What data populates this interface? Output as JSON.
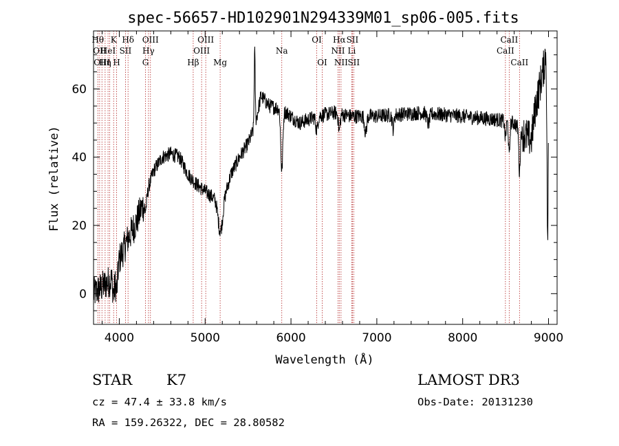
{
  "chart_data": {
    "type": "line",
    "title": "spec-56657-HD102901N294339M01_sp06-005.fits",
    "xlabel": "Wavelength (Å)",
    "ylabel": "Flux (relative)",
    "xlim": [
      3700,
      9100
    ],
    "ylim": [
      -9,
      77
    ],
    "xticks": [
      4000,
      5000,
      6000,
      7000,
      8000,
      9000
    ],
    "yticks": [
      0,
      20,
      40,
      60
    ],
    "x_minor_step": 200,
    "y_minor_step": 5,
    "spectral_lines": [
      {
        "wl": 3750,
        "label": "Hθ",
        "row": 1
      },
      {
        "wl": 3771,
        "label": "OII",
        "row": 2
      },
      {
        "wl": 3798,
        "label": "OIII",
        "row": 3
      },
      {
        "wl": 3835,
        "label": "Hη",
        "row": 3
      },
      {
        "wl": 3869,
        "label": "HeI",
        "row": 2
      },
      {
        "wl": 3889,
        "label": "",
        "row": 0
      },
      {
        "wl": 3934,
        "label": "K",
        "row": 1
      },
      {
        "wl": 3969,
        "label": "H",
        "row": 3
      },
      {
        "wl": 4072,
        "label": "SII",
        "row": 2
      },
      {
        "wl": 4102,
        "label": "Hδ",
        "row": 1
      },
      {
        "wl": 4305,
        "label": "G",
        "row": 3
      },
      {
        "wl": 4340,
        "label": "Hγ",
        "row": 2
      },
      {
        "wl": 4363,
        "label": "OIII",
        "row": 1
      },
      {
        "wl": 4861,
        "label": "Hβ",
        "row": 3
      },
      {
        "wl": 4959,
        "label": "OIII",
        "row": 2
      },
      {
        "wl": 5007,
        "label": "OIII",
        "row": 1
      },
      {
        "wl": 5175,
        "label": "Mg",
        "row": 3
      },
      {
        "wl": 5893,
        "label": "Na",
        "row": 2
      },
      {
        "wl": 6300,
        "label": "OI",
        "row": 1
      },
      {
        "wl": 6364,
        "label": "OI",
        "row": 3
      },
      {
        "wl": 6548,
        "label": "NII",
        "row": 2
      },
      {
        "wl": 6563,
        "label": "Hα",
        "row": 1
      },
      {
        "wl": 6583,
        "label": "NII",
        "row": 3
      },
      {
        "wl": 6708,
        "label": "Li",
        "row": 2
      },
      {
        "wl": 6716,
        "label": "SII",
        "row": 1
      },
      {
        "wl": 6731,
        "label": "SII",
        "row": 3
      },
      {
        "wl": 8498,
        "label": "CaII",
        "row": 2
      },
      {
        "wl": 8542,
        "label": "CaII",
        "row": 1
      },
      {
        "wl": 8662,
        "label": "CaII",
        "row": 3
      }
    ],
    "continuum": [
      [
        3700,
        0
      ],
      [
        3800,
        2
      ],
      [
        3900,
        4
      ],
      [
        4000,
        10
      ],
      [
        4100,
        16
      ],
      [
        4200,
        21
      ],
      [
        4300,
        28
      ],
      [
        4400,
        36
      ],
      [
        4500,
        40
      ],
      [
        4600,
        41
      ],
      [
        4700,
        40
      ],
      [
        4800,
        35
      ],
      [
        4900,
        32
      ],
      [
        5000,
        30
      ],
      [
        5100,
        28
      ],
      [
        5200,
        26
      ],
      [
        5300,
        35
      ],
      [
        5400,
        40
      ],
      [
        5500,
        44
      ],
      [
        5580,
        49
      ],
      [
        5650,
        58
      ],
      [
        5750,
        55
      ],
      [
        5900,
        54
      ],
      [
        6100,
        50
      ],
      [
        6300,
        52
      ],
      [
        6500,
        53
      ],
      [
        6700,
        52
      ],
      [
        7000,
        52
      ],
      [
        7500,
        53
      ],
      [
        8000,
        52
      ],
      [
        8400,
        51
      ],
      [
        8600,
        50
      ],
      [
        8700,
        47
      ],
      [
        8800,
        45
      ],
      [
        8850,
        55
      ],
      [
        8950,
        67
      ],
      [
        8980,
        75
      ],
      [
        9000,
        77
      ]
    ],
    "absorption_dips": [
      [
        3935,
        6,
        12
      ],
      [
        3970,
        7,
        12
      ],
      [
        4305,
        4,
        15
      ],
      [
        5175,
        8,
        25
      ],
      [
        5893,
        18,
        12
      ],
      [
        6300,
        4,
        12
      ],
      [
        6563,
        5,
        10
      ],
      [
        6870,
        5,
        12
      ],
      [
        7190,
        4,
        10
      ],
      [
        7600,
        3,
        15
      ],
      [
        8498,
        5,
        8
      ],
      [
        8542,
        10,
        8
      ],
      [
        8662,
        13,
        8
      ]
    ],
    "emission_spikes": [
      [
        5577,
        22,
        6
      ],
      [
        8990,
        -60,
        8
      ]
    ],
    "noise_amplitude": 2.2
  },
  "info": {
    "object_class": "STAR",
    "subclass": "K7",
    "survey": "LAMOST DR3",
    "redshift": "cz = 47.4 ± 33.8 km/s",
    "obs_date": "Obs-Date: 20131230",
    "coords": "RA = 159.26322, DEC =  28.80582"
  },
  "colors": {
    "spectrum": "#000000",
    "line_marker": "#b22222",
    "axes": "#000000"
  }
}
